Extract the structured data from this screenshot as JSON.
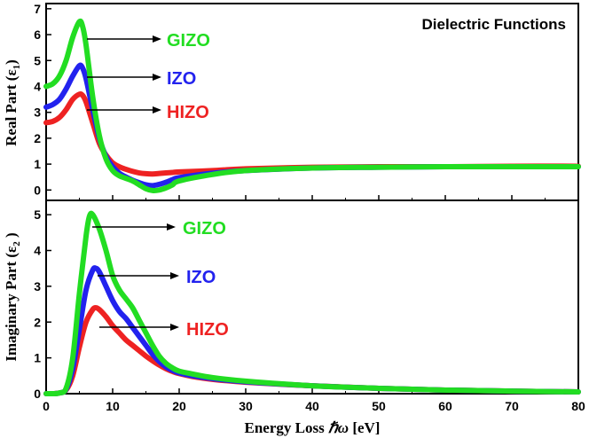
{
  "chart_data": [
    {
      "type": "line",
      "title": "Dielectric Functions",
      "xlabel": "",
      "ylabel": "Real Part (ε₁)",
      "xlim": [
        0,
        80
      ],
      "ylim": [
        -0.4,
        7.2
      ],
      "yticks": [
        0,
        1,
        2,
        3,
        4,
        5,
        6,
        7
      ],
      "xticks": [
        0,
        10,
        20,
        30,
        40,
        50,
        60,
        70,
        80
      ],
      "xtick_labels_shown": false,
      "grid": false,
      "legend": "annotation arrows near peaks",
      "series": [
        {
          "name": "GIZO",
          "color": "#22dd22",
          "x": [
            0,
            1,
            2,
            3,
            4,
            5,
            5.5,
            6,
            7,
            8,
            9,
            10,
            11,
            12,
            13,
            14,
            15,
            16,
            17,
            18,
            19,
            20,
            25,
            30,
            40,
            50,
            60,
            70,
            80
          ],
          "y": [
            4.0,
            4.1,
            4.4,
            5.0,
            5.9,
            6.5,
            6.3,
            5.6,
            3.6,
            2.1,
            1.2,
            0.75,
            0.55,
            0.45,
            0.35,
            0.2,
            0.05,
            -0.02,
            0.0,
            0.08,
            0.2,
            0.35,
            0.6,
            0.75,
            0.85,
            0.88,
            0.9,
            0.9,
            0.9
          ]
        },
        {
          "name": "IZO",
          "color": "#2222ee",
          "x": [
            0,
            1,
            2,
            3,
            4,
            5,
            5.5,
            6,
            7,
            8,
            9,
            10,
            11,
            12,
            13,
            14,
            15,
            16,
            17,
            18,
            19,
            20,
            25,
            30,
            40,
            50,
            60,
            70,
            80
          ],
          "y": [
            3.2,
            3.3,
            3.5,
            3.9,
            4.4,
            4.8,
            4.7,
            4.3,
            3.1,
            2.0,
            1.3,
            0.9,
            0.65,
            0.5,
            0.38,
            0.28,
            0.2,
            0.17,
            0.22,
            0.3,
            0.4,
            0.48,
            0.65,
            0.75,
            0.85,
            0.88,
            0.9,
            0.9,
            0.9
          ]
        },
        {
          "name": "HIZO",
          "color": "#ee2222",
          "x": [
            0,
            1,
            2,
            3,
            4,
            5,
            5.5,
            6,
            7,
            8,
            9,
            10,
            11,
            12,
            13,
            14,
            15,
            16,
            17,
            18,
            19,
            20,
            25,
            30,
            40,
            50,
            60,
            70,
            80
          ],
          "y": [
            2.6,
            2.65,
            2.8,
            3.1,
            3.5,
            3.7,
            3.65,
            3.4,
            2.6,
            1.8,
            1.35,
            1.05,
            0.9,
            0.8,
            0.72,
            0.66,
            0.63,
            0.62,
            0.64,
            0.66,
            0.68,
            0.7,
            0.75,
            0.82,
            0.88,
            0.9,
            0.9,
            0.92,
            0.92
          ]
        }
      ]
    },
    {
      "type": "line",
      "title": "",
      "xlabel": "Energy Loss ℏω [eV]",
      "ylabel": "Imaginary Part (ε₂ )",
      "xlim": [
        0,
        80
      ],
      "ylim": [
        0,
        5.4
      ],
      "yticks": [
        0,
        1,
        2,
        3,
        4,
        5
      ],
      "xticks": [
        0,
        10,
        20,
        30,
        40,
        50,
        60,
        70,
        80
      ],
      "grid": false,
      "legend": "annotation arrows near peaks",
      "series": [
        {
          "name": "GIZO",
          "color": "#22dd22",
          "x": [
            0,
            1,
            2,
            3,
            4,
            5,
            6,
            6.5,
            7,
            8,
            9,
            10,
            11,
            12,
            13,
            14,
            15,
            16,
            17,
            18,
            19,
            20,
            22,
            25,
            30,
            40,
            50,
            60,
            70,
            80
          ],
          "y": [
            0,
            0,
            0.02,
            0.15,
            1.0,
            2.8,
            4.4,
            4.95,
            5.0,
            4.6,
            4.0,
            3.3,
            2.9,
            2.65,
            2.4,
            2.05,
            1.7,
            1.35,
            1.05,
            0.85,
            0.72,
            0.63,
            0.55,
            0.45,
            0.35,
            0.22,
            0.15,
            0.1,
            0.07,
            0.05
          ]
        },
        {
          "name": "IZO",
          "color": "#2222ee",
          "x": [
            0,
            1,
            2,
            3,
            4,
            5,
            6,
            7,
            7.5,
            8,
            9,
            10,
            11,
            12,
            13,
            14,
            15,
            16,
            17,
            18,
            19,
            20,
            22,
            25,
            30,
            40,
            50,
            60,
            70,
            80
          ],
          "y": [
            0,
            0,
            0.02,
            0.12,
            0.7,
            1.8,
            2.9,
            3.45,
            3.5,
            3.4,
            3.0,
            2.6,
            2.3,
            2.1,
            1.85,
            1.6,
            1.35,
            1.1,
            0.9,
            0.75,
            0.65,
            0.58,
            0.5,
            0.42,
            0.33,
            0.22,
            0.15,
            0.1,
            0.07,
            0.05
          ]
        },
        {
          "name": "HIZO",
          "color": "#ee2222",
          "x": [
            0,
            1,
            2,
            3,
            4,
            5,
            6,
            7,
            7.5,
            8,
            9,
            10,
            11,
            12,
            13,
            14,
            15,
            16,
            17,
            18,
            19,
            20,
            22,
            25,
            30,
            40,
            50,
            60,
            70,
            80
          ],
          "y": [
            0,
            0,
            0.02,
            0.1,
            0.5,
            1.3,
            2.0,
            2.35,
            2.4,
            2.35,
            2.15,
            1.9,
            1.7,
            1.5,
            1.35,
            1.2,
            1.05,
            0.92,
            0.8,
            0.7,
            0.62,
            0.56,
            0.48,
            0.4,
            0.32,
            0.22,
            0.15,
            0.1,
            0.07,
            0.05
          ]
        }
      ]
    }
  ],
  "labels": {
    "top": {
      "gizo": "GIZO",
      "izo": "IZO",
      "hizo": "HIZO"
    },
    "bottom": {
      "gizo": "GIZO",
      "izo": "IZO",
      "hizo": "HIZO"
    }
  },
  "colors": {
    "gizo": "#22dd22",
    "izo": "#2222ee",
    "hizo": "#ee2222"
  },
  "axis_titles": {
    "top_y_main": "Real Part (ε",
    "top_y_sub": "1",
    "top_y_close": ")",
    "bottom_y_main": "Imaginary Part (ε",
    "bottom_y_sub": "2",
    "bottom_y_close": " )",
    "x_main": "Energy Loss ",
    "x_hbar": "ℏω",
    "x_unit": " [eV]"
  }
}
